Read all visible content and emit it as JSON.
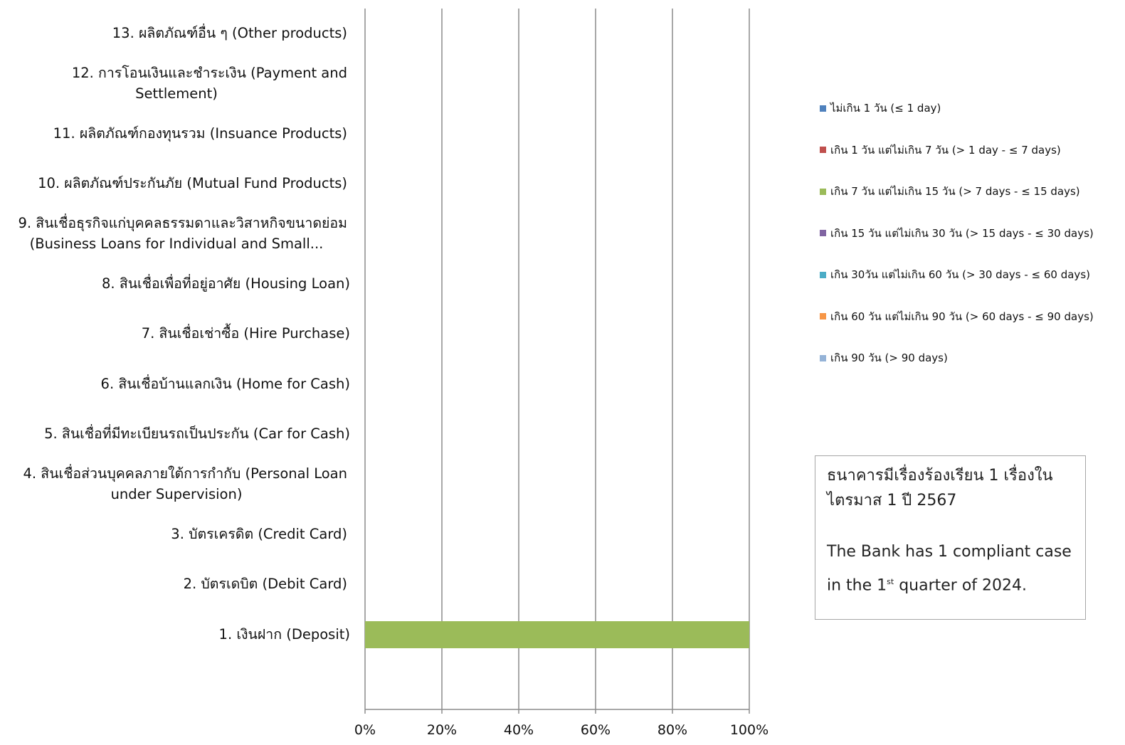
{
  "chart_data": {
    "type": "bar",
    "orientation": "horizontal",
    "stacked": true,
    "percent": true,
    "categories": [
      [
        "13. ผลิตภัณฑ์อื่น ๆ (Other products)"
      ],
      [
        "12. การโอนเงินและชำระเงิน (Payment and",
        "Settlement)"
      ],
      [
        "11. ผลิตภัณฑ์กองทุนรวม (Insuance Products)"
      ],
      [
        "10. ผลิตภัณฑ์ประกันภัย (Mutual Fund Products)"
      ],
      [
        "9. สินเชื่อธุรกิจแก่บุคคลธรรมดาและวิสาหกิจขนาดย่อม",
        "(Business Loans for Individual and Small..."
      ],
      [
        "8. สินเชื่อเพื่อที่อยู่อาศัย (Housing Loan)"
      ],
      [
        "7. สินเชื่อเช่าซื้อ (Hire Purchase)"
      ],
      [
        "6. สินเชื่อบ้านแลกเงิน (Home for Cash)"
      ],
      [
        "5. สินเชื่อที่มีทะเบียนรถเป็นประกัน (Car for Cash)"
      ],
      [
        "4. สินเชื่อส่วนบุคคลภายใต้การกำกับ (Personal Loan",
        "under Supervision)"
      ],
      [
        "3. บัตรเครดิต (Credit Card)"
      ],
      [
        "2. บัตรเดบิต (Debit Card)"
      ],
      [
        "1. เงินฝาก (Deposit)"
      ]
    ],
    "x_ticks": [
      "0%",
      "20%",
      "40%",
      "60%",
      "80%",
      "100%"
    ],
    "xlim": [
      0,
      100
    ],
    "grid": true,
    "legend_position": "right",
    "series": [
      {
        "name": "ไม่เกิน 1 วัน (≤ 1 day)",
        "color": "#4f81bd",
        "values": [
          0,
          0,
          0,
          0,
          0,
          0,
          0,
          0,
          0,
          0,
          0,
          0,
          0
        ]
      },
      {
        "name": "เกิน 1 วัน แต่ไม่เกิน 7 วัน (> 1 day - ≤ 7 days)",
        "color": "#c0504d",
        "values": [
          0,
          0,
          0,
          0,
          0,
          0,
          0,
          0,
          0,
          0,
          0,
          0,
          0
        ]
      },
      {
        "name": "เกิน 7 วัน แต่ไม่เกิน 15 วัน (> 7 days - ≤ 15 days)",
        "color": "#9bbb59",
        "values": [
          0,
          0,
          0,
          0,
          0,
          0,
          0,
          0,
          0,
          0,
          0,
          0,
          100
        ]
      },
      {
        "name": "เกิน 15 วัน แต่ไม่เกิน 30 วัน (> 15 days - ≤ 30 days)",
        "color": "#8064a2",
        "values": [
          0,
          0,
          0,
          0,
          0,
          0,
          0,
          0,
          0,
          0,
          0,
          0,
          0
        ]
      },
      {
        "name": "เกิน 30วัน แต่ไม่เกิน 60 วัน (> 30 days - ≤ 60 days)",
        "color": "#4bacc6",
        "values": [
          0,
          0,
          0,
          0,
          0,
          0,
          0,
          0,
          0,
          0,
          0,
          0,
          0
        ]
      },
      {
        "name": "เกิน 60 วัน แต่ไม่เกิน 90 วัน (> 60 days - ≤ 90 days)",
        "color": "#f79646",
        "values": [
          0,
          0,
          0,
          0,
          0,
          0,
          0,
          0,
          0,
          0,
          0,
          0,
          0
        ]
      },
      {
        "name": "เกิน 90 วัน (> 90 days)",
        "color": "#95b3d7",
        "values": [
          0,
          0,
          0,
          0,
          0,
          0,
          0,
          0,
          0,
          0,
          0,
          0,
          0
        ]
      }
    ]
  },
  "note": {
    "th_line1": "ธนาคารมีเรื่องร้องเรียน 1 เรื่องใน",
    "th_line2": "ไตรมาส 1 ปี 2567",
    "en_line1": "The Bank has 1 compliant case",
    "en_line2_prefix": "in the 1",
    "en_line2_sup": "st",
    "en_line2_suffix": " quarter of 2024."
  }
}
